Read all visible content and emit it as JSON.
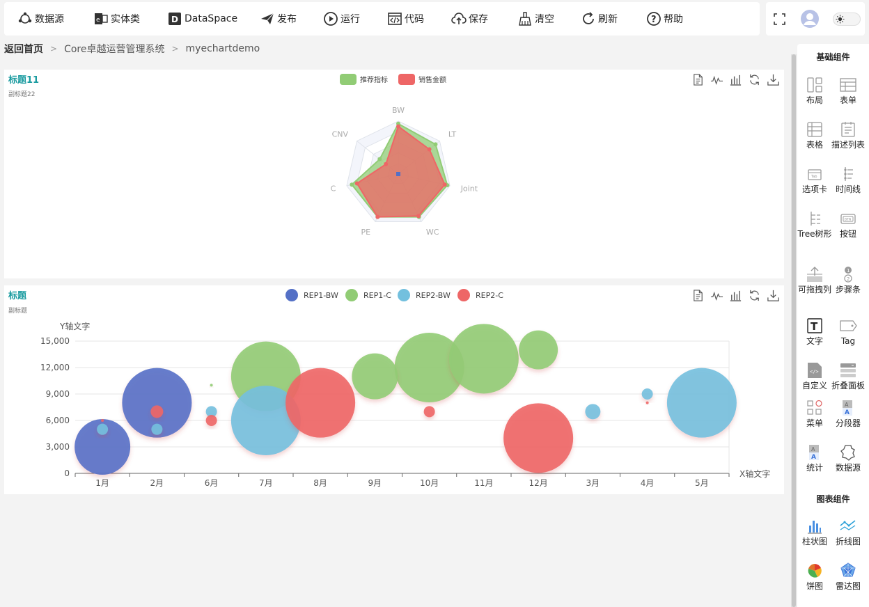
{
  "toolbar": {
    "items": [
      {
        "label": "数据源",
        "icon": "datasource-icon"
      },
      {
        "label": "实体类",
        "icon": "entity-icon"
      },
      {
        "label": "DataSpace",
        "icon": "dataspace-icon"
      },
      {
        "label": "发布",
        "icon": "publish-icon"
      },
      {
        "label": "运行",
        "icon": "run-icon"
      },
      {
        "label": "代码",
        "icon": "code-icon"
      },
      {
        "label": "保存",
        "icon": "save-icon"
      },
      {
        "label": "清空",
        "icon": "clear-icon"
      },
      {
        "label": "刷新",
        "icon": "refresh-icon"
      },
      {
        "label": "帮助",
        "icon": "help-icon"
      }
    ]
  },
  "topright": {
    "icons": [
      "fullscreen-icon",
      "avatar-icon",
      "theme-toggle"
    ]
  },
  "breadcrumb": {
    "home": "返回首页",
    "items": [
      "Core卓越运营管理系统",
      "myechartdemo"
    ]
  },
  "panel_tools": [
    "data-view-icon",
    "line-switch-icon",
    "bar-switch-icon",
    "restore-icon",
    "download-icon"
  ],
  "chart1": {
    "title": "标题11",
    "subtitle": "副标题22"
  },
  "chart2": {
    "title": "标题",
    "subtitle": "副标题"
  },
  "chart_data": [
    {
      "type": "radar",
      "title": "标题11",
      "subtitle": "副标题22",
      "indicators": [
        "BW",
        "LT",
        "Joint",
        "WC",
        "PE",
        "C",
        "CNV"
      ],
      "max": 100,
      "series": [
        {
          "name": "推荐指标",
          "color": "#91cc75",
          "values": [
            95,
            90,
            95,
            90,
            90,
            90,
            45
          ]
        },
        {
          "name": "销售金额",
          "color": "#ee6666",
          "values": [
            90,
            75,
            90,
            88,
            90,
            80,
            30
          ]
        }
      ],
      "legend_position": "top-center"
    },
    {
      "type": "scatter",
      "title": "标题",
      "subtitle": "副标题",
      "xlabel": "X轴文字",
      "ylabel": "Y轴文字",
      "categories": [
        "1月",
        "2月",
        "6月",
        "7月",
        "8月",
        "9月",
        "10月",
        "11月",
        "12月",
        "3月",
        "4月",
        "5月"
      ],
      "ylim": [
        0,
        15000
      ],
      "yticks": [
        "0",
        "3,000",
        "6,000",
        "9,000",
        "12,000",
        "15,000"
      ],
      "legend_position": "top-center",
      "series": [
        {
          "name": "REP1-BW",
          "color": "#5470c6",
          "points": [
            [
              0,
              3000,
              40
            ],
            [
              1,
              8000,
              50
            ]
          ]
        },
        {
          "name": "REP1-C",
          "color": "#91cc75",
          "points": [
            [
              2,
              10000,
              2
            ],
            [
              3,
              11000,
              50
            ],
            [
              5,
              11000,
              33
            ],
            [
              6,
              12000,
              50
            ],
            [
              7,
              13000,
              50
            ],
            [
              8,
              14000,
              28
            ]
          ]
        },
        {
          "name": "REP2-BW",
          "color": "#73c0de",
          "points": [
            [
              0,
              5000,
              8
            ],
            [
              1,
              5000,
              8
            ],
            [
              2,
              7000,
              8
            ],
            [
              3,
              6000,
              50
            ],
            [
              9,
              7000,
              11
            ],
            [
              10,
              9000,
              8
            ],
            [
              11,
              8000,
              50
            ]
          ]
        },
        {
          "name": "REP2-C",
          "color": "#ee6666",
          "points": [
            [
              0,
              6000,
              2
            ],
            [
              1,
              7000,
              9
            ],
            [
              2,
              6000,
              8
            ],
            [
              4,
              8000,
              50
            ],
            [
              6,
              7000,
              8
            ],
            [
              8,
              4000,
              50
            ],
            [
              10,
              8000,
              2
            ]
          ]
        }
      ]
    }
  ],
  "sidebar": {
    "basic_title": "基础组件",
    "basic": [
      {
        "label": "布局",
        "icon": "layout-icon"
      },
      {
        "label": "表单",
        "icon": "form-icon"
      },
      {
        "label": "表格",
        "icon": "table-icon"
      },
      {
        "label": "描述列表",
        "icon": "description-list-icon"
      },
      {
        "label": "选项卡",
        "icon": "tab-icon"
      },
      {
        "label": "时间线",
        "icon": "timeline-icon"
      },
      {
        "label": "Tree树形",
        "icon": "tree-icon"
      },
      {
        "label": "按钮",
        "icon": "button-icon"
      },
      {
        "label": "可拖拽列",
        "icon": "drag-column-icon"
      },
      {
        "label": "步骤条",
        "icon": "steps-icon"
      },
      {
        "label": "文字",
        "icon": "text-icon"
      },
      {
        "label": "Tag",
        "icon": "tag-icon"
      },
      {
        "label": "自定义",
        "icon": "custom-icon"
      },
      {
        "label": "折叠面板",
        "icon": "collapse-icon"
      },
      {
        "label": "菜单",
        "icon": "menu-icon"
      },
      {
        "label": "分段器",
        "icon": "segmented-icon"
      },
      {
        "label": "统计",
        "icon": "statistic-icon"
      },
      {
        "label": "数据源",
        "icon": "datasource-icon"
      }
    ],
    "chart_title": "图表组件",
    "charts": [
      {
        "label": "柱状图",
        "icon": "bar-chart-icon"
      },
      {
        "label": "折线图",
        "icon": "line-chart-icon"
      },
      {
        "label": "饼图",
        "icon": "pie-chart-icon"
      },
      {
        "label": "雷达图",
        "icon": "radar-chart-icon"
      }
    ]
  }
}
